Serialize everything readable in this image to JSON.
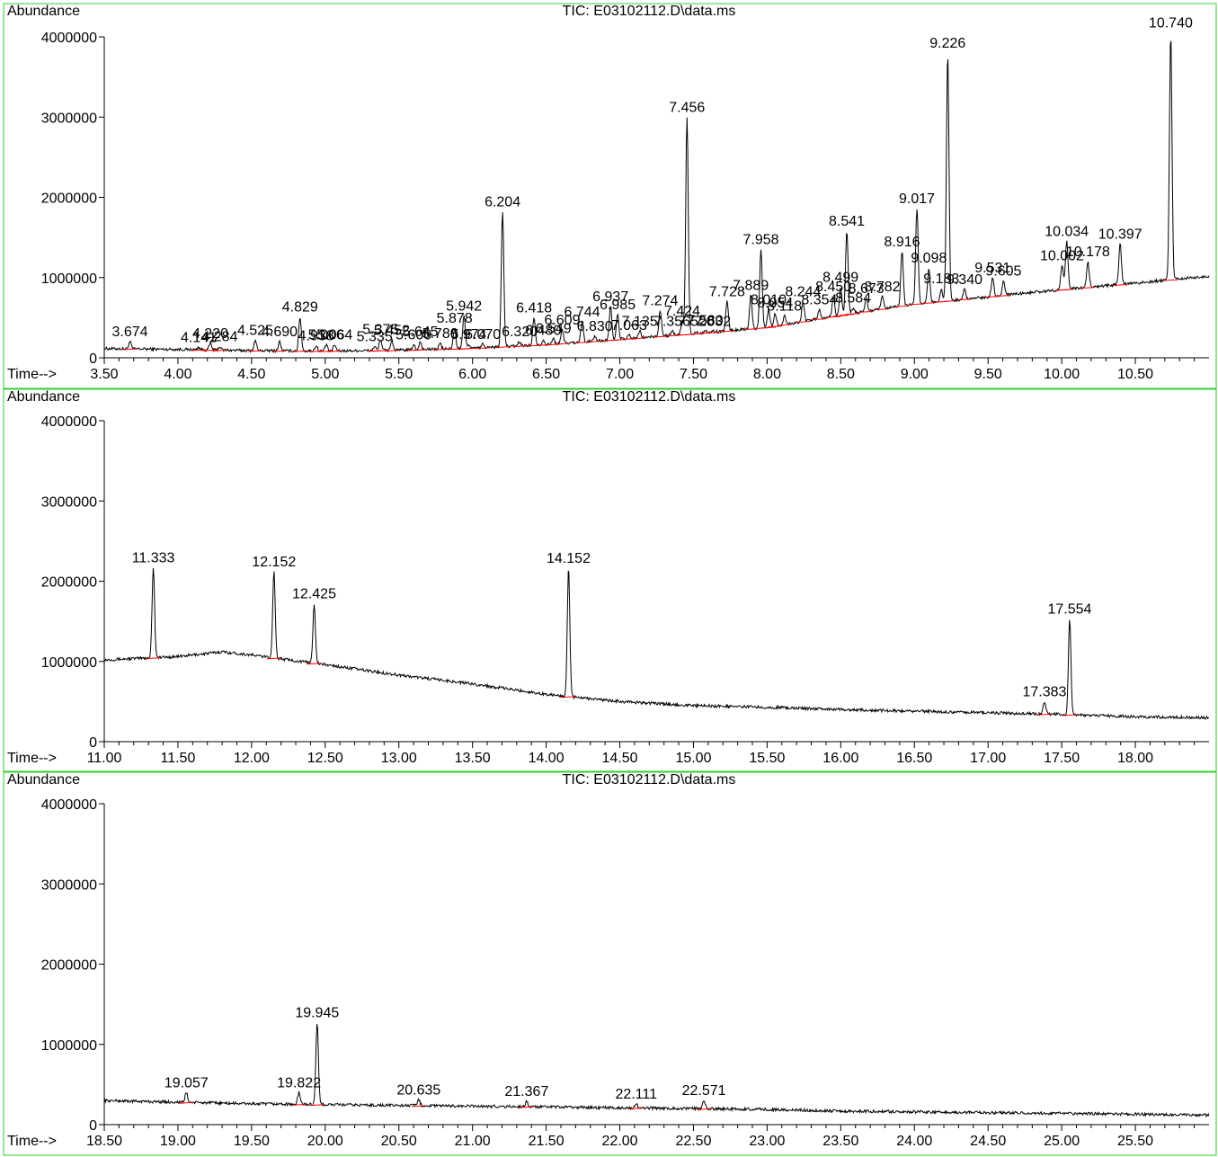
{
  "chart_data": [
    {
      "type": "line",
      "title": "TIC: E03102112.D\\data.ms",
      "ylabel": "Abundance",
      "xlabel_prefix": "Time-->",
      "xlim": [
        3.5,
        11.0
      ],
      "ylim": [
        0,
        4000000
      ],
      "yticks": [
        0,
        1000000,
        2000000,
        3000000,
        4000000
      ],
      "yticklabels": [
        "0",
        "1000000",
        "2000000",
        "3000000",
        "4000000"
      ],
      "xticks": [
        3.5,
        4.0,
        4.5,
        5.0,
        5.5,
        6.0,
        6.5,
        7.0,
        7.5,
        8.0,
        8.5,
        9.0,
        9.5,
        10.0,
        10.5
      ],
      "xticklabels": [
        "3.50",
        "4.00",
        "4.50",
        "5.00",
        "5.50",
        "6.00",
        "6.50",
        "7.00",
        "7.50",
        "8.00",
        "8.50",
        "9.00",
        "9.50",
        "10.00",
        "10.50"
      ],
      "baseline": [
        [
          3.5,
          115000
        ],
        [
          4.0,
          105000
        ],
        [
          4.5,
          90000
        ],
        [
          5.0,
          85000
        ],
        [
          5.5,
          95000
        ],
        [
          6.0,
          120000
        ],
        [
          6.5,
          165000
        ],
        [
          7.0,
          230000
        ],
        [
          7.5,
          300000
        ],
        [
          8.0,
          380000
        ],
        [
          8.5,
          530000
        ],
        [
          9.0,
          670000
        ],
        [
          9.5,
          760000
        ],
        [
          10.0,
          850000
        ],
        [
          10.5,
          930000
        ],
        [
          11.0,
          1020000
        ]
      ],
      "peaks": [
        {
          "rt": 3.674,
          "height": 200000,
          "label": "3.674"
        },
        {
          "rt": 4.141,
          "height": 130000,
          "label": "4.141"
        },
        {
          "rt": 4.22,
          "height": 180000,
          "label": "4.220"
        },
        {
          "rt": 4.284,
          "height": 140000,
          "label": "4.284"
        },
        {
          "rt": 4.525,
          "height": 220000,
          "label": "4.525"
        },
        {
          "rt": 4.69,
          "height": 200000,
          "label": "4.690"
        },
        {
          "rt": 4.829,
          "height": 510000,
          "label": "4.829"
        },
        {
          "rt": 4.938,
          "height": 150000,
          "label": "4.938"
        },
        {
          "rt": 5.006,
          "height": 160000,
          "label": "5.006"
        },
        {
          "rt": 5.064,
          "height": 160000,
          "label": "5.064"
        },
        {
          "rt": 5.335,
          "height": 140000,
          "label": "5.335"
        },
        {
          "rt": 5.375,
          "height": 230000,
          "label": "5.375"
        },
        {
          "rt": 5.452,
          "height": 220000,
          "label": "5.452"
        },
        {
          "rt": 5.6,
          "height": 160000,
          "label": "5.600"
        },
        {
          "rt": 5.645,
          "height": 200000,
          "label": "5.645"
        },
        {
          "rt": 5.78,
          "height": 180000,
          "label": "5.780"
        },
        {
          "rt": 5.878,
          "height": 370000,
          "label": "5.878"
        },
        {
          "rt": 5.942,
          "height": 520000,
          "label": "5.942"
        },
        {
          "rt": 5.974,
          "height": 170000,
          "label": "5.974"
        },
        {
          "rt": 6.07,
          "height": 170000,
          "label": "6.070"
        },
        {
          "rt": 6.204,
          "height": 1820000,
          "label": "6.204"
        },
        {
          "rt": 6.32,
          "height": 200000,
          "label": "6.320"
        },
        {
          "rt": 6.418,
          "height": 500000,
          "label": "6.418"
        },
        {
          "rt": 6.48,
          "height": 220000,
          "label": "6.480"
        },
        {
          "rt": 6.549,
          "height": 240000,
          "label": "6.549"
        },
        {
          "rt": 6.609,
          "height": 350000,
          "label": "6.609"
        },
        {
          "rt": 6.744,
          "height": 450000,
          "label": "6.744"
        },
        {
          "rt": 6.83,
          "height": 270000,
          "label": "6.830"
        },
        {
          "rt": 6.937,
          "height": 640000,
          "label": "6.937"
        },
        {
          "rt": 6.985,
          "height": 540000,
          "label": "6.985"
        },
        {
          "rt": 7.063,
          "height": 280000,
          "label": "7.063"
        },
        {
          "rt": 7.135,
          "height": 330000,
          "label": "7.135"
        },
        {
          "rt": 7.274,
          "height": 590000,
          "label": "7.274"
        },
        {
          "rt": 7.356,
          "height": 330000,
          "label": "7.356"
        },
        {
          "rt": 7.424,
          "height": 460000,
          "label": "7.424"
        },
        {
          "rt": 7.456,
          "height": 3000000,
          "label": "7.456"
        },
        {
          "rt": 7.52,
          "height": 330000,
          "label": "7.520"
        },
        {
          "rt": 7.58,
          "height": 340000,
          "label": "7.580"
        },
        {
          "rt": 7.632,
          "height": 330000,
          "label": "7.632"
        },
        {
          "rt": 7.728,
          "height": 700000,
          "label": "7.728"
        },
        {
          "rt": 7.889,
          "height": 780000,
          "label": "7.889"
        },
        {
          "rt": 7.958,
          "height": 1350000,
          "label": "7.958"
        },
        {
          "rt": 8.01,
          "height": 600000,
          "label": "8.010"
        },
        {
          "rt": 8.054,
          "height": 560000,
          "label": "8.054"
        },
        {
          "rt": 8.118,
          "height": 520000,
          "label": "8.118"
        },
        {
          "rt": 8.244,
          "height": 700000,
          "label": "8.244"
        },
        {
          "rt": 8.354,
          "height": 600000,
          "label": "8.354"
        },
        {
          "rt": 8.45,
          "height": 760000,
          "label": "8.450"
        },
        {
          "rt": 8.499,
          "height": 880000,
          "label": "8.499"
        },
        {
          "rt": 8.541,
          "height": 1580000,
          "label": "8.541"
        },
        {
          "rt": 8.584,
          "height": 620000,
          "label": "8.584"
        },
        {
          "rt": 8.673,
          "height": 740000,
          "label": "8.673"
        },
        {
          "rt": 8.782,
          "height": 760000,
          "label": "8.782"
        },
        {
          "rt": 8.916,
          "height": 1320000,
          "label": "8.916"
        },
        {
          "rt": 9.017,
          "height": 1860000,
          "label": "9.017"
        },
        {
          "rt": 9.098,
          "height": 1120000,
          "label": "9.098"
        },
        {
          "rt": 9.183,
          "height": 860000,
          "label": "9.183"
        },
        {
          "rt": 9.226,
          "height": 3800000,
          "label": "9.226"
        },
        {
          "rt": 9.34,
          "height": 850000,
          "label": "9.340"
        },
        {
          "rt": 9.531,
          "height": 1000000,
          "label": "9.531"
        },
        {
          "rt": 9.605,
          "height": 960000,
          "label": "9.605"
        },
        {
          "rt": 10.002,
          "height": 1150000,
          "label": "10.002"
        },
        {
          "rt": 10.034,
          "height": 1450000,
          "label": "10.034"
        },
        {
          "rt": 10.178,
          "height": 1200000,
          "label": "10.178"
        },
        {
          "rt": 10.397,
          "height": 1420000,
          "label": "10.397"
        },
        {
          "rt": 10.74,
          "height": 4050000,
          "label": "10.740"
        }
      ]
    },
    {
      "type": "line",
      "title": "TIC: E03102112.D\\data.ms",
      "ylabel": "Abundance",
      "xlabel_prefix": "Time-->",
      "xlim": [
        11.0,
        18.5
      ],
      "ylim": [
        0,
        4000000
      ],
      "yticks": [
        0,
        1000000,
        2000000,
        3000000,
        4000000
      ],
      "yticklabels": [
        "0",
        "1000000",
        "2000000",
        "3000000",
        "4000000"
      ],
      "xticks": [
        11.0,
        11.5,
        12.0,
        12.5,
        13.0,
        13.5,
        14.0,
        14.5,
        15.0,
        15.5,
        16.0,
        16.5,
        17.0,
        17.5,
        18.0
      ],
      "xticklabels": [
        "11.00",
        "11.50",
        "12.00",
        "12.50",
        "13.00",
        "13.50",
        "14.00",
        "14.50",
        "15.00",
        "15.50",
        "16.00",
        "16.50",
        "17.00",
        "17.50",
        "18.00"
      ],
      "baseline": [
        [
          11.0,
          1020000
        ],
        [
          11.5,
          1060000
        ],
        [
          11.8,
          1120000
        ],
        [
          12.0,
          1080000
        ],
        [
          12.5,
          960000
        ],
        [
          13.0,
          830000
        ],
        [
          13.5,
          720000
        ],
        [
          14.0,
          590000
        ],
        [
          14.5,
          500000
        ],
        [
          15.0,
          450000
        ],
        [
          15.5,
          430000
        ],
        [
          16.0,
          400000
        ],
        [
          16.5,
          380000
        ],
        [
          17.0,
          360000
        ],
        [
          17.5,
          340000
        ],
        [
          18.0,
          310000
        ],
        [
          18.5,
          300000
        ]
      ],
      "peaks": [
        {
          "rt": 11.333,
          "height": 2170000,
          "label": "11.333"
        },
        {
          "rt": 12.152,
          "height": 2120000,
          "label": "12.152"
        },
        {
          "rt": 12.425,
          "height": 1720000,
          "label": "12.425"
        },
        {
          "rt": 14.152,
          "height": 2160000,
          "label": "14.152"
        },
        {
          "rt": 17.383,
          "height": 500000,
          "label": "17.383"
        },
        {
          "rt": 17.554,
          "height": 1530000,
          "label": "17.554"
        }
      ]
    },
    {
      "type": "line",
      "title": "TIC: E03102112.D\\data.ms",
      "ylabel": "Abundance",
      "xlabel_prefix": "Time-->",
      "xlim": [
        18.5,
        26.0
      ],
      "ylim": [
        0,
        4000000
      ],
      "yticks": [
        0,
        1000000,
        2000000,
        3000000,
        4000000
      ],
      "yticklabels": [
        "0",
        "1000000",
        "2000000",
        "3000000",
        "4000000"
      ],
      "xticks": [
        18.5,
        19.0,
        19.5,
        20.0,
        20.5,
        21.0,
        21.5,
        22.0,
        22.5,
        23.0,
        23.5,
        24.0,
        24.5,
        25.0,
        25.5
      ],
      "xticklabels": [
        "18.50",
        "19.00",
        "19.50",
        "20.00",
        "20.50",
        "21.00",
        "21.50",
        "22.00",
        "22.50",
        "23.00",
        "23.50",
        "24.00",
        "24.50",
        "25.00",
        "25.50"
      ],
      "baseline": [
        [
          18.5,
          300000
        ],
        [
          19.0,
          280000
        ],
        [
          19.5,
          260000
        ],
        [
          20.0,
          250000
        ],
        [
          20.5,
          240000
        ],
        [
          21.0,
          230000
        ],
        [
          21.5,
          220000
        ],
        [
          22.0,
          210000
        ],
        [
          22.5,
          200000
        ],
        [
          23.0,
          190000
        ],
        [
          23.5,
          170000
        ],
        [
          24.0,
          160000
        ],
        [
          24.5,
          150000
        ],
        [
          25.0,
          140000
        ],
        [
          25.5,
          130000
        ],
        [
          26.0,
          120000
        ]
      ],
      "peaks": [
        {
          "rt": 19.057,
          "height": 400000,
          "label": "19.057"
        },
        {
          "rt": 19.822,
          "height": 400000,
          "label": "19.822"
        },
        {
          "rt": 19.945,
          "height": 1270000,
          "label": "19.945"
        },
        {
          "rt": 20.635,
          "height": 310000,
          "label": "20.635"
        },
        {
          "rt": 21.367,
          "height": 290000,
          "label": "21.367"
        },
        {
          "rt": 22.111,
          "height": 260000,
          "label": "22.111"
        },
        {
          "rt": 22.571,
          "height": 300000,
          "label": "22.571"
        }
      ]
    }
  ]
}
